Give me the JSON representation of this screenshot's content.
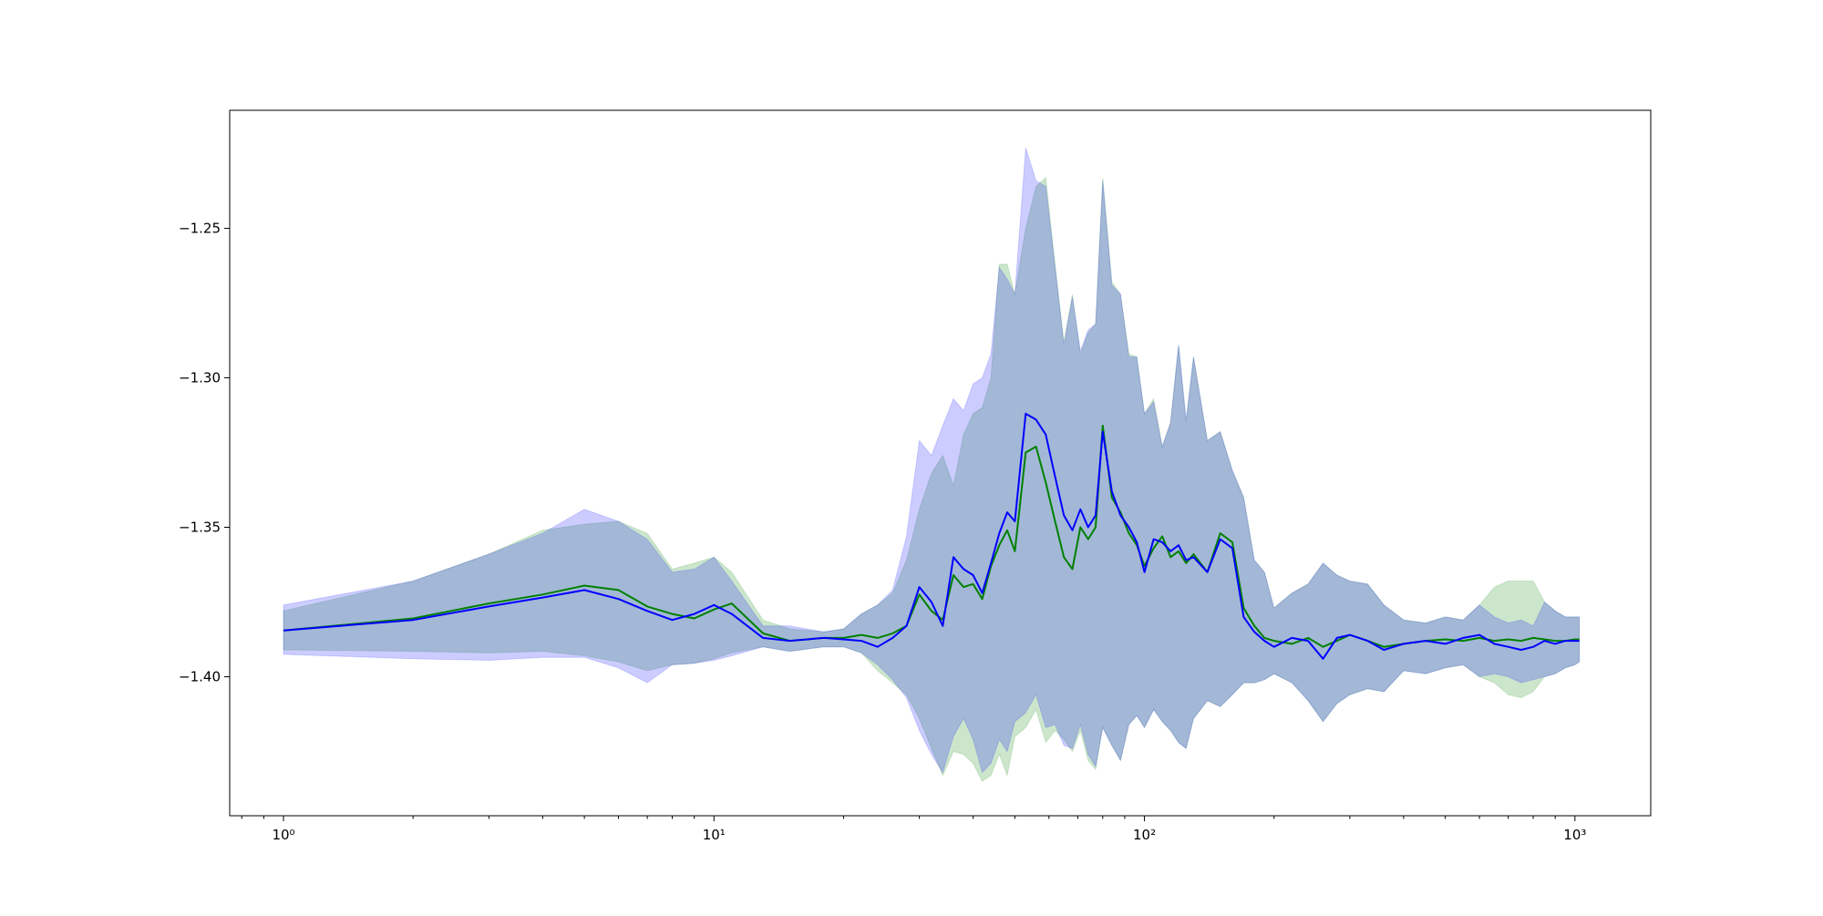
{
  "chart_data": {
    "type": "area",
    "title": "",
    "xlabel": "",
    "ylabel": "",
    "xscale": "log",
    "xlim": [
      0.75,
      1500
    ],
    "ylim": [
      -1.4465,
      -1.2105
    ],
    "grid": false,
    "legend": "none",
    "x_ticks": [
      {
        "value": 1,
        "label": "10⁰"
      },
      {
        "value": 10,
        "label": "10¹"
      },
      {
        "value": 100,
        "label": "10²"
      },
      {
        "value": 1000,
        "label": "10³"
      }
    ],
    "y_ticks": [
      {
        "value": -1.25,
        "label": "−1.25"
      },
      {
        "value": -1.3,
        "label": "−1.30"
      },
      {
        "value": -1.35,
        "label": "−1.35"
      },
      {
        "value": -1.4,
        "label": "−1.40"
      }
    ],
    "series": [
      {
        "color": "#008000",
        "band_color": "#008000",
        "band_opacity": 0.2,
        "x": [
          1,
          2,
          3,
          4,
          5,
          6,
          7,
          8,
          9,
          10,
          11,
          13,
          15,
          18,
          20,
          22,
          24,
          26,
          28,
          30,
          32,
          34,
          36,
          38,
          40,
          42,
          44,
          46,
          48,
          50,
          53,
          56,
          59,
          62,
          65,
          68,
          71,
          74,
          77,
          80,
          84,
          88,
          92,
          96,
          100,
          105,
          110,
          115,
          120,
          125,
          130,
          140,
          150,
          160,
          170,
          180,
          190,
          200,
          220,
          240,
          260,
          280,
          300,
          330,
          360,
          400,
          450,
          500,
          550,
          600,
          650,
          700,
          750,
          800,
          850,
          900,
          950,
          1000,
          1024
        ],
        "y": [
          -1.3845,
          -1.3805,
          -1.3755,
          -1.3725,
          -1.3695,
          -1.371,
          -1.3765,
          -1.379,
          -1.3805,
          -1.3775,
          -1.3755,
          -1.3855,
          -1.388,
          -1.387,
          -1.387,
          -1.386,
          -1.387,
          -1.3855,
          -1.383,
          -1.3725,
          -1.378,
          -1.381,
          -1.366,
          -1.37,
          -1.369,
          -1.374,
          -1.363,
          -1.356,
          -1.351,
          -1.358,
          -1.325,
          -1.323,
          -1.335,
          -1.348,
          -1.36,
          -1.364,
          -1.35,
          -1.354,
          -1.35,
          -1.316,
          -1.34,
          -1.345,
          -1.352,
          -1.356,
          -1.363,
          -1.357,
          -1.353,
          -1.36,
          -1.358,
          -1.362,
          -1.359,
          -1.365,
          -1.352,
          -1.355,
          -1.377,
          -1.383,
          -1.387,
          -1.388,
          -1.389,
          -1.387,
          -1.39,
          -1.388,
          -1.386,
          -1.388,
          -1.39,
          -1.389,
          -1.388,
          -1.3875,
          -1.388,
          -1.387,
          -1.388,
          -1.3875,
          -1.388,
          -1.387,
          -1.3875,
          -1.388,
          -1.388,
          -1.3875,
          -1.3875
        ],
        "upper": [
          -1.378,
          -1.368,
          -1.359,
          -1.351,
          -1.349,
          -1.348,
          -1.352,
          -1.364,
          -1.362,
          -1.36,
          -1.365,
          -1.381,
          -1.384,
          -1.385,
          -1.384,
          -1.379,
          -1.376,
          -1.372,
          -1.361,
          -1.344,
          -1.332,
          -1.326,
          -1.336,
          -1.319,
          -1.312,
          -1.31,
          -1.3,
          -1.262,
          -1.262,
          -1.272,
          -1.25,
          -1.236,
          -1.233,
          -1.262,
          -1.288,
          -1.272,
          -1.292,
          -1.285,
          -1.282,
          -1.233,
          -1.268,
          -1.272,
          -1.292,
          -1.293,
          -1.312,
          -1.307,
          -1.323,
          -1.315,
          -1.289,
          -1.315,
          -1.293,
          -1.321,
          -1.318,
          -1.331,
          -1.34,
          -1.361,
          -1.365,
          -1.377,
          -1.372,
          -1.369,
          -1.362,
          -1.366,
          -1.368,
          -1.369,
          -1.376,
          -1.381,
          -1.382,
          -1.38,
          -1.381,
          -1.376,
          -1.37,
          -1.368,
          -1.368,
          -1.368,
          -1.375,
          -1.378,
          -1.38,
          -1.38,
          -1.38
        ],
        "lower": [
          -1.391,
          -1.3915,
          -1.392,
          -1.3915,
          -1.393,
          -1.395,
          -1.398,
          -1.396,
          -1.3955,
          -1.394,
          -1.392,
          -1.39,
          -1.3915,
          -1.39,
          -1.39,
          -1.392,
          -1.398,
          -1.402,
          -1.406,
          -1.414,
          -1.424,
          -1.433,
          -1.425,
          -1.426,
          -1.429,
          -1.435,
          -1.433,
          -1.426,
          -1.433,
          -1.42,
          -1.417,
          -1.411,
          -1.422,
          -1.418,
          -1.421,
          -1.425,
          -1.418,
          -1.428,
          -1.431,
          -1.417,
          -1.423,
          -1.428,
          -1.416,
          -1.413,
          -1.417,
          -1.411,
          -1.415,
          -1.418,
          -1.422,
          -1.424,
          -1.414,
          -1.408,
          -1.41,
          -1.406,
          -1.402,
          -1.402,
          -1.401,
          -1.399,
          -1.402,
          -1.408,
          -1.415,
          -1.409,
          -1.406,
          -1.404,
          -1.405,
          -1.398,
          -1.399,
          -1.397,
          -1.396,
          -1.4,
          -1.402,
          -1.406,
          -1.407,
          -1.405,
          -1.4,
          -1.399,
          -1.397,
          -1.396,
          -1.395
        ]
      },
      {
        "color": "#0000ff",
        "band_color": "#0000ff",
        "band_opacity": 0.2,
        "x": [
          1,
          2,
          3,
          4,
          5,
          6,
          7,
          8,
          9,
          10,
          11,
          13,
          15,
          18,
          20,
          22,
          24,
          26,
          28,
          30,
          32,
          34,
          36,
          38,
          40,
          42,
          44,
          46,
          48,
          50,
          53,
          56,
          59,
          62,
          65,
          68,
          71,
          74,
          77,
          80,
          84,
          88,
          92,
          96,
          100,
          105,
          110,
          115,
          120,
          125,
          130,
          140,
          150,
          160,
          170,
          180,
          190,
          200,
          220,
          240,
          260,
          280,
          300,
          330,
          360,
          400,
          450,
          500,
          550,
          600,
          650,
          700,
          750,
          800,
          850,
          900,
          950,
          1000,
          1024
        ],
        "y": [
          -1.3845,
          -1.381,
          -1.3765,
          -1.3735,
          -1.371,
          -1.374,
          -1.378,
          -1.381,
          -1.379,
          -1.376,
          -1.379,
          -1.387,
          -1.388,
          -1.387,
          -1.3875,
          -1.388,
          -1.39,
          -1.387,
          -1.383,
          -1.37,
          -1.375,
          -1.383,
          -1.36,
          -1.364,
          -1.366,
          -1.372,
          -1.362,
          -1.352,
          -1.345,
          -1.348,
          -1.312,
          -1.314,
          -1.319,
          -1.333,
          -1.346,
          -1.351,
          -1.344,
          -1.35,
          -1.346,
          -1.318,
          -1.338,
          -1.346,
          -1.35,
          -1.355,
          -1.365,
          -1.354,
          -1.355,
          -1.358,
          -1.356,
          -1.361,
          -1.36,
          -1.365,
          -1.354,
          -1.357,
          -1.38,
          -1.385,
          -1.388,
          -1.39,
          -1.387,
          -1.388,
          -1.394,
          -1.387,
          -1.386,
          -1.388,
          -1.391,
          -1.389,
          -1.388,
          -1.389,
          -1.387,
          -1.386,
          -1.389,
          -1.39,
          -1.391,
          -1.39,
          -1.388,
          -1.389,
          -1.388,
          -1.388,
          -1.388
        ],
        "upper": [
          -1.376,
          -1.368,
          -1.359,
          -1.352,
          -1.344,
          -1.348,
          -1.354,
          -1.365,
          -1.364,
          -1.36,
          -1.368,
          -1.383,
          -1.383,
          -1.385,
          -1.384,
          -1.379,
          -1.376,
          -1.371,
          -1.353,
          -1.321,
          -1.326,
          -1.316,
          -1.307,
          -1.311,
          -1.302,
          -1.3,
          -1.292,
          -1.263,
          -1.267,
          -1.272,
          -1.223,
          -1.234,
          -1.236,
          -1.263,
          -1.289,
          -1.273,
          -1.291,
          -1.284,
          -1.282,
          -1.234,
          -1.269,
          -1.272,
          -1.293,
          -1.293,
          -1.312,
          -1.308,
          -1.323,
          -1.315,
          -1.289,
          -1.314,
          -1.293,
          -1.321,
          -1.318,
          -1.331,
          -1.34,
          -1.361,
          -1.365,
          -1.377,
          -1.372,
          -1.369,
          -1.362,
          -1.366,
          -1.368,
          -1.369,
          -1.376,
          -1.381,
          -1.382,
          -1.38,
          -1.381,
          -1.376,
          -1.38,
          -1.382,
          -1.381,
          -1.383,
          -1.375,
          -1.378,
          -1.38,
          -1.38,
          -1.38
        ],
        "lower": [
          -1.3925,
          -1.394,
          -1.3945,
          -1.3935,
          -1.3935,
          -1.397,
          -1.402,
          -1.396,
          -1.3955,
          -1.3945,
          -1.393,
          -1.39,
          -1.3915,
          -1.39,
          -1.39,
          -1.392,
          -1.396,
          -1.401,
          -1.407,
          -1.418,
          -1.426,
          -1.432,
          -1.42,
          -1.414,
          -1.421,
          -1.432,
          -1.429,
          -1.421,
          -1.425,
          -1.415,
          -1.412,
          -1.406,
          -1.417,
          -1.416,
          -1.423,
          -1.424,
          -1.416,
          -1.426,
          -1.43,
          -1.417,
          -1.423,
          -1.428,
          -1.416,
          -1.413,
          -1.417,
          -1.411,
          -1.415,
          -1.418,
          -1.422,
          -1.424,
          -1.414,
          -1.408,
          -1.41,
          -1.406,
          -1.402,
          -1.402,
          -1.401,
          -1.399,
          -1.402,
          -1.408,
          -1.415,
          -1.409,
          -1.406,
          -1.404,
          -1.405,
          -1.398,
          -1.399,
          -1.397,
          -1.396,
          -1.4,
          -1.399,
          -1.4,
          -1.402,
          -1.401,
          -1.4,
          -1.399,
          -1.397,
          -1.396,
          -1.395
        ]
      }
    ]
  }
}
